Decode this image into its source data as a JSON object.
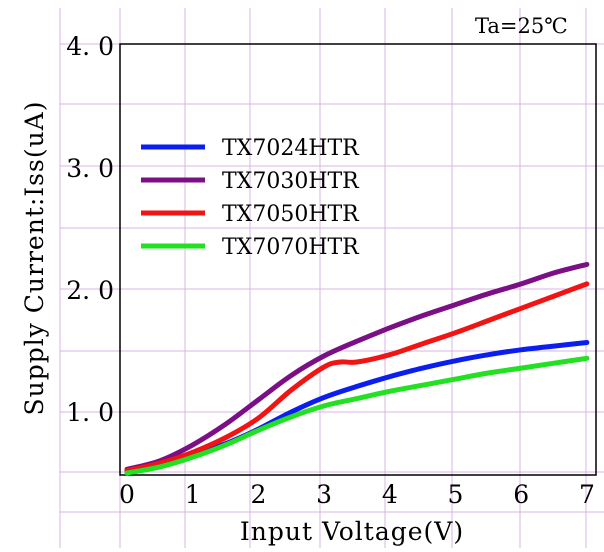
{
  "chart_data": {
    "type": "line",
    "annotation": "Ta=25℃",
    "xlabel": "Input Voltage(V)",
    "ylabel": "Supply Current:Iss(uA)",
    "xlim": [
      0,
      7
    ],
    "ylim": [
      0.5,
      4.0
    ],
    "xticks": [
      "0",
      "1",
      "2",
      "3",
      "4",
      "5",
      "6",
      "7"
    ],
    "yticks": [
      "1. 0",
      "2. 0",
      "3. 0",
      "4. 0"
    ],
    "grid": true,
    "legend_position": "upper-left",
    "series": [
      {
        "name": "TX7024HTR",
        "color": "#0a1ef0",
        "x": [
          0,
          0.5,
          1,
          1.5,
          2,
          2.5,
          3,
          3.5,
          4,
          4.5,
          5,
          5.5,
          6,
          6.5,
          7
        ],
        "y": [
          0.52,
          0.57,
          0.65,
          0.74,
          0.86,
          1.0,
          1.12,
          1.21,
          1.29,
          1.36,
          1.42,
          1.47,
          1.51,
          1.54,
          1.57
        ]
      },
      {
        "name": "TX7030HTR",
        "color": "#7b0f86",
        "x": [
          0,
          0.5,
          1,
          1.5,
          2,
          2.5,
          3,
          3.5,
          4,
          4.5,
          5,
          5.5,
          6,
          6.5,
          7
        ],
        "y": [
          0.53,
          0.6,
          0.73,
          0.9,
          1.1,
          1.3,
          1.46,
          1.58,
          1.69,
          1.79,
          1.88,
          1.97,
          2.05,
          2.14,
          2.21
        ]
      },
      {
        "name": "TX7050HTR",
        "color": "#f01414",
        "x": [
          0,
          0.5,
          1,
          1.5,
          2,
          2.5,
          3,
          3.25,
          3.5,
          4,
          4.5,
          5,
          5.5,
          6,
          6.5,
          7
        ],
        "y": [
          0.52,
          0.58,
          0.67,
          0.79,
          0.95,
          1.18,
          1.37,
          1.41,
          1.41,
          1.47,
          1.56,
          1.65,
          1.75,
          1.85,
          1.95,
          2.05
        ]
      },
      {
        "name": "TX7070HTR",
        "color": "#22e022",
        "x": [
          0,
          0.5,
          1,
          1.5,
          2,
          2.5,
          3,
          3.5,
          4,
          4.5,
          5,
          5.5,
          6,
          6.5,
          7
        ],
        "y": [
          0.5,
          0.55,
          0.63,
          0.73,
          0.85,
          0.96,
          1.05,
          1.11,
          1.17,
          1.22,
          1.27,
          1.32,
          1.36,
          1.4,
          1.44
        ]
      }
    ]
  }
}
